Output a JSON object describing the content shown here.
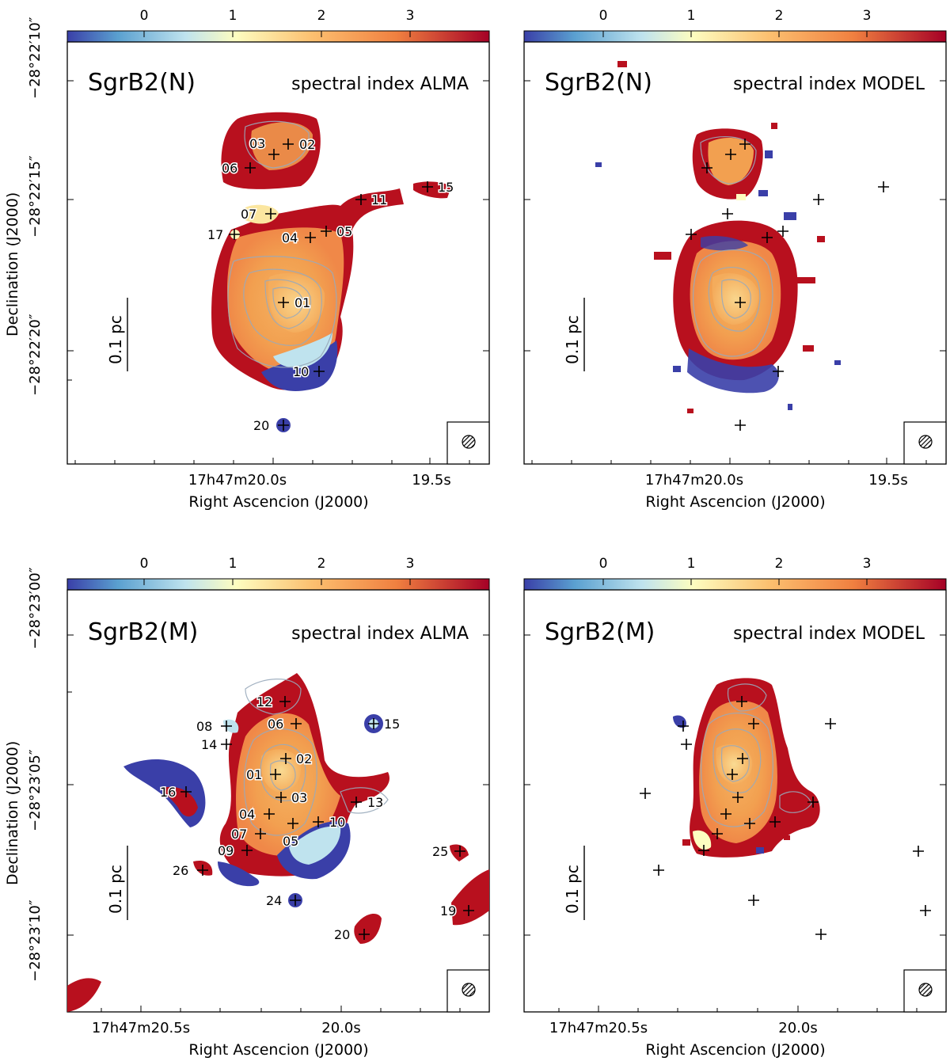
{
  "colorbar": {
    "ticks": [
      "0",
      "1",
      "2",
      "3"
    ],
    "colors": [
      "#3a3fa8",
      "#5aa0d0",
      "#bfe3ee",
      "#fdfdc0",
      "#fcc070",
      "#f08040",
      "#a50026"
    ]
  },
  "panels": [
    {
      "id": "tl",
      "title": "SgrB2(N)",
      "subtitle": "spectral index ALMA",
      "ylabel": "Declination (J2000)",
      "xlabel": "Right Ascencion (J2000)",
      "xticks": [
        "17h47m20.0s",
        "19.5s"
      ],
      "yticks": [
        "−28°22′10″",
        "−28°22′15″",
        "−28°22′20″"
      ],
      "scalebar": "0.1 pc",
      "sources": [
        "01",
        "02",
        "03",
        "05",
        "04",
        "06",
        "07",
        "10",
        "11",
        "15",
        "17",
        "20"
      ]
    },
    {
      "id": "tr",
      "title": "SgrB2(N)",
      "subtitle": "spectral index MODEL",
      "ylabel": "",
      "xlabel": "Right Ascencion (J2000)",
      "xticks": [
        "17h47m20.0s",
        "19.5s"
      ],
      "yticks": [],
      "scalebar": "0.1 pc",
      "sources": []
    },
    {
      "id": "bl",
      "title": "SgrB2(M)",
      "subtitle": "spectral index ALMA",
      "ylabel": "Declination (J2000)",
      "xlabel": "Right Ascencion (J2000)",
      "xticks": [
        "17h47m20.5s",
        "20.0s"
      ],
      "yticks": [
        "−28°23′00″",
        "−28°23′05″",
        "−28°23′10″"
      ],
      "scalebar": "0.1 pc",
      "sources": [
        "12",
        "08",
        "06",
        "14",
        "15",
        "02",
        "01",
        "16",
        "03",
        "13",
        "04",
        "10",
        "07",
        "05",
        "09",
        "25",
        "26",
        "24",
        "19",
        "20"
      ]
    },
    {
      "id": "br",
      "title": "SgrB2(M)",
      "subtitle": "spectral index MODEL",
      "ylabel": "",
      "xlabel": "Right Ascencion (J2000)",
      "xticks": [
        "17h47m20.5s",
        "20.0s"
      ],
      "yticks": [],
      "scalebar": "0.1 pc",
      "sources": []
    }
  ]
}
